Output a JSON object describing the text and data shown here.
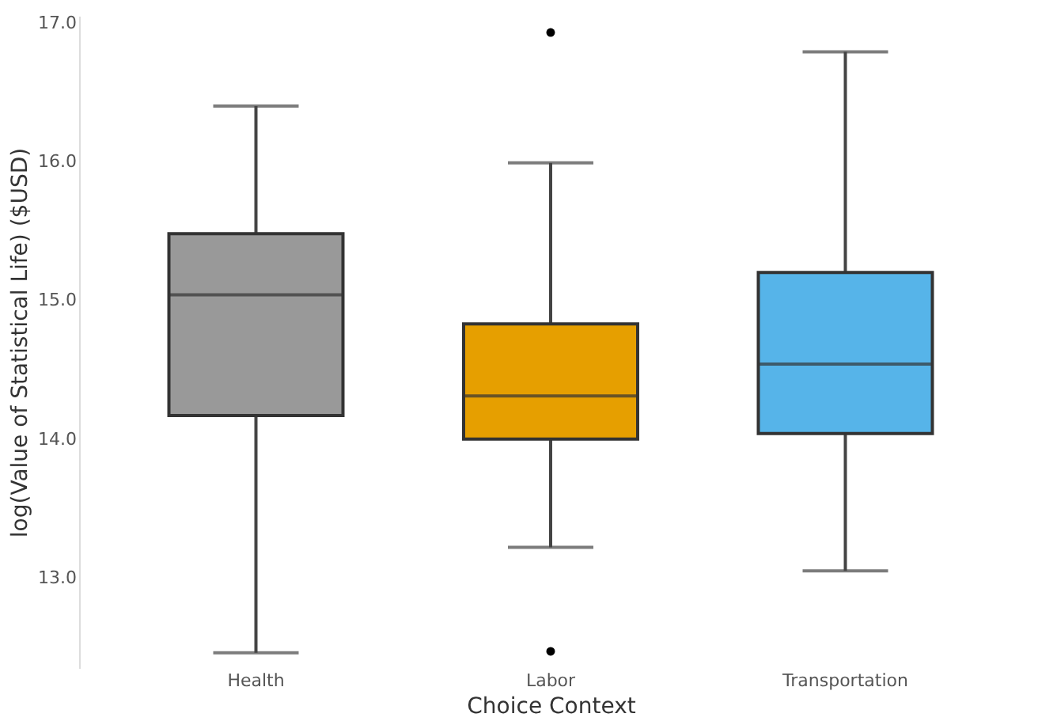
{
  "chart_data": {
    "type": "box",
    "categories": [
      "Health",
      "Labor",
      "Transportation"
    ],
    "boxes": [
      {
        "low": 12.46,
        "q1": 14.17,
        "median": 15.04,
        "q3": 15.48,
        "high": 16.4
      },
      {
        "low": 13.22,
        "q1": 14.0,
        "median": 14.31,
        "q3": 14.83,
        "high": 15.99,
        "outliers": [
          16.93,
          12.47
        ]
      },
      {
        "low": 13.05,
        "q1": 14.04,
        "median": 14.54,
        "q3": 15.2,
        "high": 16.79
      }
    ],
    "colors": [
      "#999999",
      "#e69f00",
      "#56b4e9"
    ],
    "xlabel": "Choice Context",
    "ylabel": "log(Value of Statistical Life) ($USD)",
    "ylim": [
      12.35,
      17.05
    ],
    "yticks": [
      {
        "value": 13,
        "label": "13.0"
      },
      {
        "value": 14,
        "label": "14.0"
      },
      {
        "value": 15,
        "label": "15.0"
      },
      {
        "value": 16,
        "label": "16.0"
      },
      {
        "value": 17,
        "label": "17.0"
      }
    ],
    "grid": false
  }
}
